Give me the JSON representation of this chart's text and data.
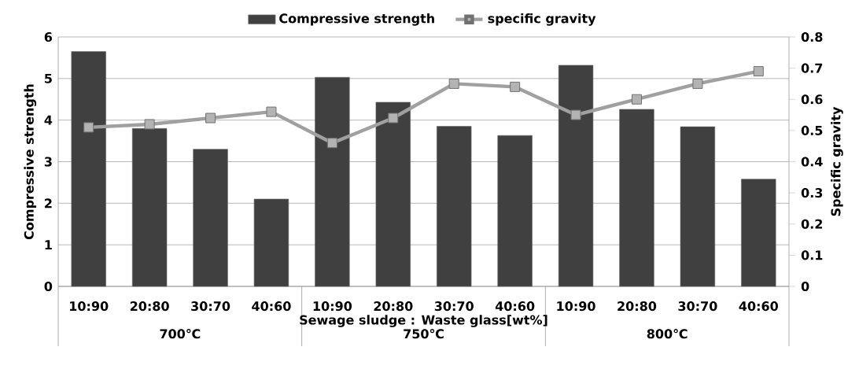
{
  "chart_data": {
    "type": "bar",
    "categories": [
      "10:90",
      "20:80",
      "30:70",
      "40:60",
      "10:90",
      "20:80",
      "30:70",
      "40:60",
      "10:90",
      "20:80",
      "30:70",
      "40:60"
    ],
    "series": [
      {
        "name": "Compressive strength",
        "color": "#404040",
        "values": [
          5.65,
          3.8,
          3.3,
          2.1,
          5.03,
          4.43,
          3.85,
          3.63,
          5.32,
          4.26,
          3.84,
          2.58
        ]
      },
      {
        "name": "specific gravity",
        "type": "line",
        "axis": "y2",
        "color": "#a0a0a0",
        "values": [
          0.51,
          0.52,
          0.54,
          0.56,
          0.46,
          0.54,
          0.65,
          0.64,
          0.55,
          0.6,
          0.65,
          0.69
        ]
      }
    ],
    "xlabel": "Sewage sludge : Waste glass[wt%]",
    "ylabel": "Compressive strength",
    "y2label": "Specific gravity",
    "ylim": [
      0,
      6
    ],
    "yticks": [
      0,
      1,
      2,
      3,
      4,
      5,
      6
    ],
    "y2lim": [
      0,
      0.8
    ],
    "y2ticks": [
      0,
      0.1,
      0.2,
      0.3,
      0.4,
      0.5,
      0.6,
      0.7,
      0.8
    ],
    "annotations": [
      "700℃",
      "750℃",
      "800℃"
    ],
    "grid": "y",
    "legend": "top",
    "marker": "square",
    "line_style": "solid"
  }
}
